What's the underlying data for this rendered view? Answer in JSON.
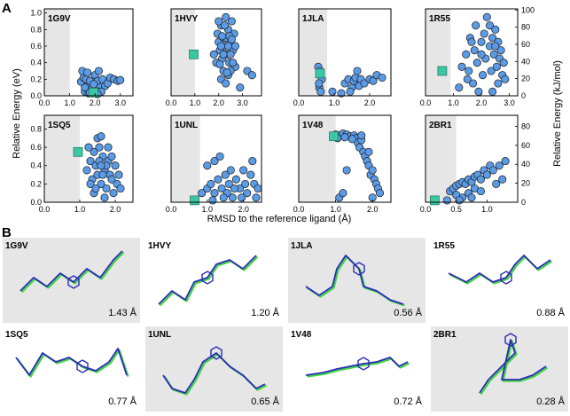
{
  "figure": {
    "panel_a_letter": "A",
    "panel_b_letter": "B",
    "y_axis_left_label": "Relative Energy (eV)",
    "y_axis_right_label": "Relative Energy (kJ/mol)",
    "x_axis_label": "RMSD to the reference ligand (Å)",
    "y_ticks_ev": [
      "0.0",
      "0.2",
      "0.4",
      "0.6",
      "0.8",
      "1.0"
    ],
    "y_ticks_kj": [
      "0",
      "20",
      "40",
      "60",
      "80",
      "100"
    ],
    "colors": {
      "point_fill": "#5b9be6",
      "point_stroke": "#1a1a1a",
      "reference_square": "#3cc7a4",
      "shade": "#e6e6e6",
      "ligand_green": "#3fd43f",
      "ligand_blue": "#2b2bb8",
      "ligand_black": "#111111"
    }
  },
  "chart_data": [
    {
      "type": "scatter",
      "label": "1G9V",
      "xticks": [
        "0.0",
        "1.0",
        "2.0",
        "3.0"
      ],
      "xlim": [
        0,
        3.5
      ],
      "ylim": [
        0,
        1.05
      ],
      "shade_to": 1.0,
      "reference": [
        1.95,
        0.04
      ],
      "points": [
        [
          1.45,
          0.17
        ],
        [
          1.55,
          0.22
        ],
        [
          1.65,
          0.2
        ],
        [
          1.7,
          0.12
        ],
        [
          1.8,
          0.18
        ],
        [
          1.85,
          0.07
        ],
        [
          1.9,
          0.03
        ],
        [
          2.0,
          0.25
        ],
        [
          2.1,
          0.18
        ],
        [
          2.2,
          0.1
        ],
        [
          2.3,
          0.2
        ],
        [
          2.4,
          0.12
        ],
        [
          2.5,
          0.15
        ],
        [
          2.6,
          0.22
        ],
        [
          2.75,
          0.2
        ],
        [
          2.9,
          0.18
        ],
        [
          3.0,
          0.19
        ],
        [
          1.6,
          0.05
        ],
        [
          1.75,
          0.03
        ],
        [
          2.05,
          0.06
        ],
        [
          1.5,
          0.3
        ],
        [
          1.7,
          0.28
        ],
        [
          2.15,
          0.3
        ],
        [
          1.6,
          0.1
        ],
        [
          1.95,
          0.14
        ],
        [
          2.25,
          0.05
        ],
        [
          1.8,
          0.04
        ],
        [
          2.1,
          0.02
        ]
      ]
    },
    {
      "type": "scatter",
      "label": "1HVY",
      "xticks": [
        "0.0",
        "1.0",
        "2.0",
        "3.0"
      ],
      "xlim": [
        0,
        3.8
      ],
      "ylim": [
        0,
        1.05
      ],
      "shade_to": 1.0,
      "reference": [
        0.95,
        0.5
      ],
      "points": [
        [
          1.95,
          0.75
        ],
        [
          2.0,
          0.65
        ],
        [
          2.05,
          0.55
        ],
        [
          2.1,
          0.85
        ],
        [
          2.15,
          0.45
        ],
        [
          2.2,
          0.7
        ],
        [
          2.25,
          0.6
        ],
        [
          2.3,
          0.95
        ],
        [
          2.35,
          0.5
        ],
        [
          2.4,
          0.8
        ],
        [
          2.45,
          0.4
        ],
        [
          2.5,
          0.65
        ],
        [
          2.55,
          0.9
        ],
        [
          2.6,
          0.55
        ],
        [
          2.65,
          0.75
        ],
        [
          2.7,
          0.35
        ],
        [
          2.2,
          0.3
        ],
        [
          2.1,
          0.2
        ],
        [
          2.3,
          0.15
        ],
        [
          2.4,
          0.25
        ],
        [
          2.5,
          0.3
        ],
        [
          1.8,
          0.5
        ],
        [
          1.9,
          0.4
        ],
        [
          2.0,
          0.9
        ],
        [
          2.3,
          0.7
        ],
        [
          2.2,
          0.5
        ],
        [
          2.4,
          0.6
        ],
        [
          2.6,
          0.4
        ],
        [
          2.1,
          0.6
        ],
        [
          2.5,
          0.5
        ],
        [
          2.7,
          0.6
        ],
        [
          3.2,
          0.3
        ],
        [
          3.4,
          0.25
        ],
        [
          2.9,
          0.1
        ],
        [
          2.25,
          0.85
        ],
        [
          2.45,
          0.72
        ],
        [
          2.35,
          0.28
        ],
        [
          2.05,
          0.38
        ],
        [
          2.15,
          0.72
        ],
        [
          2.55,
          0.68
        ]
      ]
    },
    {
      "type": "scatter",
      "label": "1JLA",
      "xticks": [
        "0.0",
        "1.0",
        "2.0"
      ],
      "xlim": [
        0,
        2.6
      ],
      "ylim": [
        0,
        1.05
      ],
      "shade_to": 0.8,
      "reference": [
        0.6,
        0.27
      ],
      "points": [
        [
          0.55,
          0.35
        ],
        [
          0.6,
          0.3
        ],
        [
          0.65,
          0.2
        ],
        [
          0.58,
          0.1
        ],
        [
          0.62,
          0.05
        ],
        [
          0.57,
          0.15
        ],
        [
          1.3,
          0.15
        ],
        [
          1.4,
          0.2
        ],
        [
          1.5,
          0.1
        ],
        [
          1.55,
          0.18
        ],
        [
          1.6,
          0.22
        ],
        [
          1.7,
          0.12
        ],
        [
          1.75,
          0.2
        ],
        [
          1.85,
          0.15
        ],
        [
          2.0,
          0.2
        ],
        [
          2.1,
          0.18
        ],
        [
          2.2,
          0.25
        ],
        [
          2.35,
          0.22
        ],
        [
          1.2,
          0.03
        ],
        [
          1.45,
          0.05
        ],
        [
          0.95,
          0.05
        ],
        [
          1.65,
          0.3
        ]
      ]
    },
    {
      "type": "scatter",
      "label": "1R55",
      "xticks": [
        "0.0",
        "1.0",
        "2.0",
        "3.0"
      ],
      "xlim": [
        0,
        3.3
      ],
      "ylim": [
        0,
        1.05
      ],
      "shade_to": 0.9,
      "reference": [
        0.6,
        0.3
      ],
      "points": [
        [
          1.3,
          0.35
        ],
        [
          1.45,
          0.5
        ],
        [
          1.55,
          0.3
        ],
        [
          1.6,
          0.7
        ],
        [
          1.7,
          0.15
        ],
        [
          1.75,
          0.55
        ],
        [
          1.8,
          0.85
        ],
        [
          1.85,
          0.4
        ],
        [
          1.9,
          0.05
        ],
        [
          2.0,
          0.65
        ],
        [
          2.05,
          0.25
        ],
        [
          2.1,
          0.75
        ],
        [
          2.15,
          0.45
        ],
        [
          2.2,
          0.95
        ],
        [
          2.3,
          0.6
        ],
        [
          2.35,
          0.3
        ],
        [
          2.4,
          0.7
        ],
        [
          2.45,
          0.5
        ],
        [
          2.5,
          0.8
        ],
        [
          2.55,
          0.35
        ],
        [
          2.6,
          0.65
        ],
        [
          2.65,
          0.45
        ],
        [
          2.7,
          0.55
        ],
        [
          2.75,
          0.25
        ],
        [
          2.8,
          0.4
        ],
        [
          2.5,
          0.6
        ],
        [
          2.3,
          0.85
        ],
        [
          2.0,
          0.5
        ],
        [
          1.2,
          0.1
        ],
        [
          1.5,
          0.2
        ],
        [
          1.65,
          0.65
        ],
        [
          2.85,
          0.2
        ],
        [
          2.6,
          0.15
        ],
        [
          2.4,
          0.05
        ]
      ]
    },
    {
      "type": "scatter",
      "label": "1SQ5",
      "xticks": [
        "0.0",
        "1.0",
        "2.0"
      ],
      "xlim": [
        0,
        2.5
      ],
      "ylim": [
        0,
        0.95
      ],
      "shade_to": 1.0,
      "reference": [
        0.95,
        0.55
      ],
      "points": [
        [
          1.2,
          0.35
        ],
        [
          1.3,
          0.45
        ],
        [
          1.35,
          0.25
        ],
        [
          1.4,
          0.55
        ],
        [
          1.45,
          0.4
        ],
        [
          1.5,
          0.3
        ],
        [
          1.55,
          0.6
        ],
        [
          1.6,
          0.2
        ],
        [
          1.65,
          0.5
        ],
        [
          1.7,
          0.35
        ],
        [
          1.75,
          0.15
        ],
        [
          1.8,
          0.45
        ],
        [
          1.85,
          0.3
        ],
        [
          1.9,
          0.25
        ],
        [
          1.95,
          0.1
        ],
        [
          2.0,
          0.4
        ],
        [
          2.05,
          0.2
        ],
        [
          2.1,
          0.3
        ],
        [
          1.5,
          0.7
        ],
        [
          1.6,
          0.72
        ],
        [
          1.4,
          0.1
        ],
        [
          1.3,
          0.2
        ],
        [
          1.7,
          0.05
        ],
        [
          1.8,
          0.6
        ],
        [
          1.55,
          0.45
        ],
        [
          1.65,
          0.3
        ],
        [
          1.45,
          0.15
        ],
        [
          1.75,
          0.4
        ],
        [
          1.9,
          0.5
        ],
        [
          2.15,
          0.15
        ],
        [
          1.25,
          0.6
        ],
        [
          1.6,
          0.4
        ]
      ]
    },
    {
      "type": "scatter",
      "label": "1UNL",
      "xticks": [
        "0.0",
        "1.0",
        "2.0"
      ],
      "xlim": [
        0,
        2.5
      ],
      "ylim": [
        0,
        0.95
      ],
      "shade_to": 0.8,
      "reference": [
        0.65,
        0.02
      ],
      "points": [
        [
          0.85,
          0.1
        ],
        [
          1.0,
          0.15
        ],
        [
          1.1,
          0.2
        ],
        [
          1.2,
          0.1
        ],
        [
          1.3,
          0.25
        ],
        [
          1.4,
          0.15
        ],
        [
          1.5,
          0.3
        ],
        [
          1.55,
          0.1
        ],
        [
          1.6,
          0.2
        ],
        [
          1.7,
          0.05
        ],
        [
          1.8,
          0.25
        ],
        [
          1.9,
          0.15
        ],
        [
          2.0,
          0.35
        ],
        [
          2.05,
          0.2
        ],
        [
          2.1,
          0.1
        ],
        [
          2.2,
          0.3
        ],
        [
          2.3,
          0.2
        ],
        [
          2.4,
          0.15
        ],
        [
          1.0,
          0.4
        ],
        [
          1.2,
          0.45
        ],
        [
          1.35,
          0.5
        ],
        [
          2.25,
          0.45
        ],
        [
          1.45,
          0.05
        ],
        [
          1.75,
          0.15
        ],
        [
          1.95,
          0.05
        ],
        [
          1.65,
          0.35
        ],
        [
          2.35,
          0.05
        ],
        [
          1.15,
          0.02
        ]
      ]
    },
    {
      "type": "scatter",
      "label": "1V48",
      "xticks": [
        "0.0",
        "1.0",
        "2.0"
      ],
      "xlim": [
        0,
        2.5
      ],
      "ylim": [
        0,
        0.95
      ],
      "shade_to": 1.0,
      "reference": [
        0.95,
        0.72
      ],
      "points": [
        [
          1.0,
          0.74
        ],
        [
          1.1,
          0.73
        ],
        [
          1.2,
          0.75
        ],
        [
          1.3,
          0.74
        ],
        [
          1.4,
          0.72
        ],
        [
          1.5,
          0.73
        ],
        [
          1.55,
          0.7
        ],
        [
          1.6,
          0.65
        ],
        [
          1.65,
          0.6
        ],
        [
          1.7,
          0.68
        ],
        [
          1.75,
          0.55
        ],
        [
          1.8,
          0.5
        ],
        [
          1.85,
          0.45
        ],
        [
          1.9,
          0.4
        ],
        [
          1.95,
          0.3
        ],
        [
          2.0,
          0.35
        ],
        [
          2.05,
          0.25
        ],
        [
          2.1,
          0.2
        ],
        [
          2.15,
          0.15
        ],
        [
          2.2,
          0.1
        ],
        [
          1.05,
          0.7
        ],
        [
          1.25,
          0.71
        ],
        [
          1.45,
          0.69
        ],
        [
          1.7,
          0.73
        ],
        [
          1.3,
          0.35
        ],
        [
          1.1,
          0.05
        ],
        [
          1.2,
          0.1
        ],
        [
          1.9,
          0.55
        ],
        [
          2.0,
          0.05
        ]
      ]
    },
    {
      "type": "scatter",
      "label": "2BR1",
      "xticks": [
        "0.0",
        "0.5",
        "1.0"
      ],
      "xlim": [
        0,
        1.5
      ],
      "ylim": [
        0,
        0.95
      ],
      "shade_to": 0.5,
      "reference": [
        0.15,
        0.02
      ],
      "points": [
        [
          0.4,
          0.12
        ],
        [
          0.45,
          0.15
        ],
        [
          0.5,
          0.18
        ],
        [
          0.55,
          0.2
        ],
        [
          0.6,
          0.22
        ],
        [
          0.65,
          0.2
        ],
        [
          0.7,
          0.25
        ],
        [
          0.75,
          0.22
        ],
        [
          0.8,
          0.28
        ],
        [
          0.85,
          0.3
        ],
        [
          0.9,
          0.25
        ],
        [
          0.95,
          0.35
        ],
        [
          1.0,
          0.3
        ],
        [
          1.05,
          0.4
        ],
        [
          1.1,
          0.35
        ],
        [
          1.2,
          0.4
        ],
        [
          1.3,
          0.45
        ],
        [
          0.6,
          0.05
        ],
        [
          0.7,
          0.1
        ],
        [
          0.8,
          0.15
        ],
        [
          0.5,
          0.08
        ],
        [
          0.9,
          0.12
        ],
        [
          0.35,
          0.02
        ],
        [
          0.55,
          0.02
        ],
        [
          0.75,
          0.05
        ],
        [
          1.15,
          0.2
        ],
        [
          1.25,
          0.25
        ]
      ]
    }
  ],
  "panel_b": [
    {
      "id": "1G9V",
      "rmsd": "1.43 Å",
      "shaded": true
    },
    {
      "id": "1HVY",
      "rmsd": "1.20 Å",
      "shaded": false
    },
    {
      "id": "1JLA",
      "rmsd": "0.56 Å",
      "shaded": true
    },
    {
      "id": "1R55",
      "rmsd": "0.88 Å",
      "shaded": false
    },
    {
      "id": "1SQ5",
      "rmsd": "0.77 Å",
      "shaded": false
    },
    {
      "id": "1UNL",
      "rmsd": "0.65 Å",
      "shaded": true
    },
    {
      "id": "1V48",
      "rmsd": "0.72 Å",
      "shaded": false
    },
    {
      "id": "2BR1",
      "rmsd": "0.28 Å",
      "shaded": true
    }
  ]
}
